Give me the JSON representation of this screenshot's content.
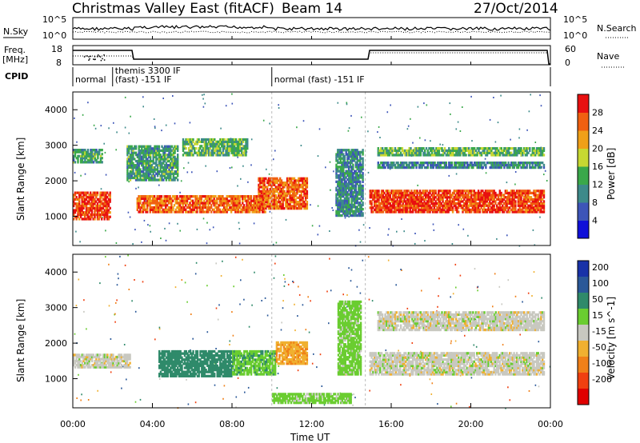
{
  "header": {
    "title": "Christmas Valley East (fitACF)",
    "beam": "Beam 14",
    "date": "27/Oct/2014"
  },
  "top_panels": {
    "nsky_label": "N.Sky",
    "nsearch_label": "N.Search",
    "noise_ticks": [
      "10^5",
      "10^0"
    ],
    "freq_label_1": "Freq.",
    "freq_label_2": "[MHz]",
    "freq_ticks": [
      "18",
      "8"
    ],
    "nave_label": "Nave",
    "nave_ticks": [
      "60",
      "0"
    ],
    "cpid_label": "CPID",
    "cpid_segments": [
      {
        "label": "normal",
        "start_h": 0.0,
        "end_h": 2.0
      },
      {
        "label": "themis 3300 IF",
        "label2": "(fast) -151 IF",
        "start_h": 2.0,
        "end_h": 10.0
      },
      {
        "label": "normal (fast) -151 IF",
        "start_h": 10.0,
        "end_h": 24.0
      }
    ]
  },
  "time_axis": {
    "label": "Time UT",
    "ticks": [
      "00:00",
      "04:00",
      "08:00",
      "12:00",
      "16:00",
      "20:00",
      "00:00"
    ]
  },
  "range_axis": {
    "label": "Slant Range [km]",
    "ticks": [
      "1000",
      "2000",
      "3000",
      "4000"
    ]
  },
  "power_colorbar": {
    "label": "Power [dB]",
    "ticks": [
      "4",
      "8",
      "12",
      "16",
      "20",
      "24",
      "28"
    ],
    "colors": [
      "#1010d8",
      "#3d55b8",
      "#3d8a8a",
      "#3aa84a",
      "#c7d832",
      "#f0a018",
      "#f06010",
      "#e81010"
    ]
  },
  "velocity_colorbar": {
    "label": "Velocity [m s^-1]",
    "ticks": [
      "200",
      "100",
      "50",
      "15",
      "-15",
      "-50",
      "-100",
      "-200"
    ],
    "colors": [
      "#1832a8",
      "#2a5898",
      "#2f8a6a",
      "#6acd30",
      "#c8c8c0",
      "#f0b030",
      "#f08018",
      "#f04010",
      "#e00000"
    ]
  },
  "chart_data": {
    "type": "heatmap",
    "x_range_hours": [
      0,
      24
    ],
    "y_range_km": [
      180,
      4500
    ],
    "power_bands": [
      {
        "start_h": 0.0,
        "end_h": 1.9,
        "range_km": [
          900,
          1700
        ],
        "power_db": 28
      },
      {
        "start_h": 0.0,
        "end_h": 1.5,
        "range_km": [
          2500,
          2900
        ],
        "power_db": 12
      },
      {
        "start_h": 2.7,
        "end_h": 5.3,
        "range_km": [
          2000,
          3000
        ],
        "power_db": 12
      },
      {
        "start_h": 3.2,
        "end_h": 9.7,
        "range_km": [
          1100,
          1600
        ],
        "power_db": 26
      },
      {
        "start_h": 5.5,
        "end_h": 8.8,
        "range_km": [
          2700,
          3200
        ],
        "power_db": 14
      },
      {
        "start_h": 9.3,
        "end_h": 11.8,
        "range_km": [
          1200,
          2100
        ],
        "power_db": 26
      },
      {
        "start_h": 13.2,
        "end_h": 14.6,
        "range_km": [
          1000,
          2900
        ],
        "power_db": 10
      },
      {
        "start_h": 14.9,
        "end_h": 23.7,
        "range_km": [
          1100,
          1750
        ],
        "power_db": 28
      },
      {
        "start_h": 15.3,
        "end_h": 23.7,
        "range_km": [
          2700,
          2950
        ],
        "power_db": 14
      },
      {
        "start_h": 15.3,
        "end_h": 23.7,
        "range_km": [
          2350,
          2550
        ],
        "power_db": 10
      }
    ],
    "velocity_bands": [
      {
        "start_h": 0.0,
        "end_h": 2.9,
        "range_km": [
          1300,
          1700
        ],
        "velocity": 0
      },
      {
        "start_h": 4.3,
        "end_h": 8.0,
        "range_km": [
          1050,
          1800
        ],
        "velocity": 80
      },
      {
        "start_h": 8.0,
        "end_h": 10.2,
        "range_km": [
          1100,
          1800
        ],
        "velocity": 40
      },
      {
        "start_h": 10.2,
        "end_h": 11.8,
        "range_km": [
          1400,
          2050
        ],
        "velocity": -40
      },
      {
        "start_h": 13.3,
        "end_h": 14.5,
        "range_km": [
          1100,
          3200
        ],
        "velocity": 30
      },
      {
        "start_h": 14.9,
        "end_h": 23.7,
        "range_km": [
          1100,
          1750
        ],
        "velocity": 0
      },
      {
        "start_h": 15.3,
        "end_h": 23.7,
        "range_km": [
          2350,
          2900
        ],
        "velocity": 0
      },
      {
        "start_h": 10.0,
        "end_h": 14.0,
        "range_km": [
          300,
          600
        ],
        "velocity": 30
      }
    ]
  }
}
